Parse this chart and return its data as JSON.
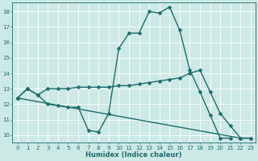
{
  "xlabel": "Humidex (Indice chaleur)",
  "background_color": "#cce9e5",
  "line_color": "#1e6b6b",
  "grid_color": "#ffffff",
  "xlim": [
    -0.5,
    23.5
  ],
  "ylim": [
    9.5,
    18.6
  ],
  "yticks": [
    10,
    11,
    12,
    13,
    14,
    15,
    16,
    17,
    18
  ],
  "xticks": [
    0,
    1,
    2,
    3,
    4,
    5,
    6,
    7,
    8,
    9,
    10,
    11,
    12,
    13,
    14,
    15,
    16,
    17,
    18,
    19,
    20,
    21,
    22,
    23
  ],
  "line1_x": [
    0,
    1,
    2,
    3,
    4,
    5,
    6,
    7,
    8,
    9,
    10,
    11,
    12,
    13,
    14,
    15,
    16,
    17,
    18,
    19,
    20,
    21
  ],
  "line1_y": [
    12.4,
    13.0,
    12.6,
    12.0,
    11.9,
    11.8,
    11.8,
    10.3,
    10.2,
    11.4,
    15.6,
    16.6,
    16.6,
    18.0,
    17.9,
    18.3,
    16.8,
    14.2,
    12.8,
    11.3,
    9.8,
    9.8
  ],
  "line2_x": [
    0,
    1,
    2,
    3,
    4,
    5,
    6,
    7,
    8,
    9,
    10,
    11,
    12,
    13,
    14,
    15,
    16,
    17,
    18,
    19,
    20,
    21,
    22,
    23
  ],
  "line2_y": [
    12.4,
    13.0,
    12.6,
    13.0,
    13.0,
    13.0,
    13.1,
    13.1,
    13.1,
    13.1,
    13.2,
    13.2,
    13.3,
    13.4,
    13.5,
    13.6,
    13.7,
    14.0,
    14.2,
    12.8,
    11.4,
    10.6,
    9.8,
    9.8
  ],
  "line3_x": [
    0,
    22,
    23
  ],
  "line3_y": [
    12.4,
    9.8,
    9.8
  ],
  "marker_size": 2.5,
  "line_width": 1.0,
  "tick_fontsize": 5.0,
  "xlabel_fontsize": 6.0
}
